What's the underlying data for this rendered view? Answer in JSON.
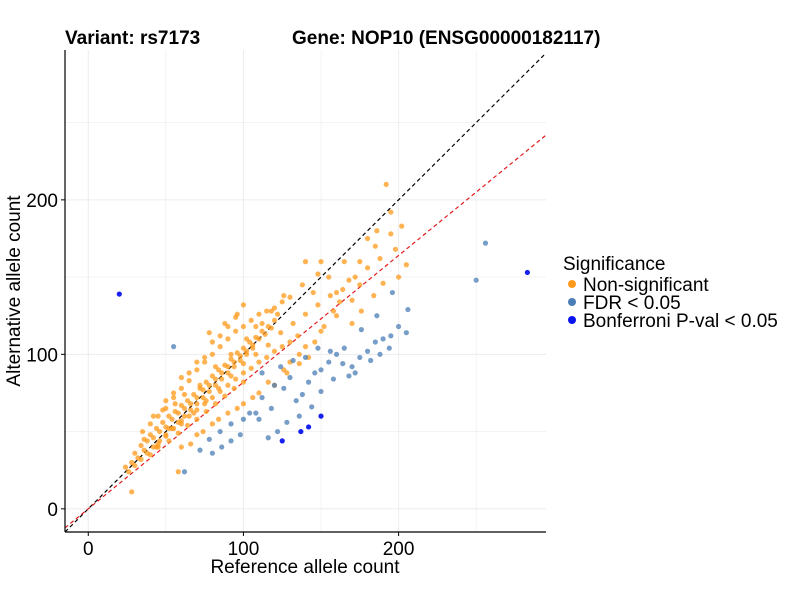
{
  "chart_data": {
    "type": "scatter",
    "title_left": "Variant: rs7173",
    "title_right": "Gene: NOP10 (ENSG00000182117)",
    "xlabel": "Reference allele count",
    "ylabel": "Alternative allele count",
    "xlim": [
      -15,
      295
    ],
    "ylim": [
      -15,
      297
    ],
    "xticks": [
      0,
      100,
      200
    ],
    "yticks": [
      0,
      100,
      200
    ],
    "grid": true,
    "reference_lines": [
      {
        "name": "identity",
        "slope": 1,
        "intercept": 0,
        "color": "#000000",
        "style": "dashed"
      },
      {
        "name": "fit",
        "slope": 0.82,
        "intercept": 0,
        "color": "#e41a1c",
        "style": "dashed"
      }
    ],
    "legend": {
      "title": "Significance",
      "position": "right",
      "entries": [
        {
          "label": "Non-significant",
          "color": "#ff9a1a"
        },
        {
          "label": "FDR < 0.05",
          "color": "#4a7eb5"
        },
        {
          "label": "Bonferroni P-val < 0.05",
          "color": "#0a14f0"
        }
      ]
    },
    "series": [
      {
        "name": "Non-significant",
        "color": "#ff9a1a",
        "points": [
          [
            28,
            11
          ],
          [
            26,
            24
          ],
          [
            24,
            27
          ],
          [
            28,
            30
          ],
          [
            30,
            36
          ],
          [
            32,
            33
          ],
          [
            34,
            41
          ],
          [
            36,
            38
          ],
          [
            38,
            44
          ],
          [
            40,
            48
          ],
          [
            42,
            46
          ],
          [
            44,
            52
          ],
          [
            46,
            50
          ],
          [
            48,
            56
          ],
          [
            50,
            53
          ],
          [
            52,
            60
          ],
          [
            54,
            58
          ],
          [
            56,
            63
          ],
          [
            58,
            62
          ],
          [
            60,
            67
          ],
          [
            62,
            65
          ],
          [
            64,
            70
          ],
          [
            66,
            68
          ],
          [
            68,
            74
          ],
          [
            70,
            72
          ],
          [
            72,
            78
          ],
          [
            74,
            77
          ],
          [
            76,
            82
          ],
          [
            78,
            80
          ],
          [
            80,
            86
          ],
          [
            82,
            84
          ],
          [
            84,
            90
          ],
          [
            86,
            88
          ],
          [
            88,
            93
          ],
          [
            90,
            92
          ],
          [
            92,
            97
          ],
          [
            94,
            95
          ],
          [
            96,
            101
          ],
          [
            98,
            99
          ],
          [
            100,
            104
          ],
          [
            102,
            102
          ],
          [
            104,
            108
          ],
          [
            106,
            106
          ],
          [
            108,
            111
          ],
          [
            110,
            110
          ],
          [
            112,
            115
          ],
          [
            114,
            113
          ],
          [
            116,
            118
          ],
          [
            118,
            117
          ],
          [
            120,
            122
          ],
          [
            35,
            50
          ],
          [
            40,
            55
          ],
          [
            45,
            60
          ],
          [
            50,
            65
          ],
          [
            55,
            72
          ],
          [
            60,
            78
          ],
          [
            65,
            83
          ],
          [
            70,
            90
          ],
          [
            75,
            95
          ],
          [
            80,
            100
          ],
          [
            85,
            105
          ],
          [
            90,
            110
          ],
          [
            95,
            115
          ],
          [
            100,
            118
          ],
          [
            105,
            122
          ],
          [
            110,
            126
          ],
          [
            115,
            128
          ],
          [
            120,
            130
          ],
          [
            125,
            134
          ],
          [
            130,
            137
          ],
          [
            40,
            35
          ],
          [
            45,
            42
          ],
          [
            50,
            47
          ],
          [
            55,
            52
          ],
          [
            60,
            57
          ],
          [
            65,
            60
          ],
          [
            70,
            64
          ],
          [
            75,
            68
          ],
          [
            80,
            72
          ],
          [
            85,
            76
          ],
          [
            90,
            80
          ],
          [
            95,
            84
          ],
          [
            100,
            88
          ],
          [
            105,
            91
          ],
          [
            110,
            95
          ],
          [
            115,
            98
          ],
          [
            120,
            102
          ],
          [
            125,
            105
          ],
          [
            130,
            108
          ],
          [
            135,
            112
          ],
          [
            45,
            40
          ],
          [
            52,
            44
          ],
          [
            58,
            49
          ],
          [
            64,
            54
          ],
          [
            70,
            58
          ],
          [
            76,
            63
          ],
          [
            82,
            68
          ],
          [
            88,
            73
          ],
          [
            94,
            78
          ],
          [
            100,
            82
          ],
          [
            36,
            45
          ],
          [
            44,
            40
          ],
          [
            52,
            52
          ],
          [
            60,
            55
          ],
          [
            68,
            62
          ],
          [
            76,
            70
          ],
          [
            84,
            78
          ],
          [
            92,
            86
          ],
          [
            100,
            94
          ],
          [
            108,
            100
          ],
          [
            116,
            106
          ],
          [
            124,
            114
          ],
          [
            132,
            120
          ],
          [
            140,
            126
          ],
          [
            148,
            132
          ],
          [
            156,
            138
          ],
          [
            164,
            142
          ],
          [
            172,
            150
          ],
          [
            180,
            156
          ],
          [
            188,
            162
          ],
          [
            130,
            95
          ],
          [
            140,
            105
          ],
          [
            150,
            115
          ],
          [
            160,
            125
          ],
          [
            170,
            135
          ],
          [
            145,
            140
          ],
          [
            155,
            150
          ],
          [
            165,
            160
          ],
          [
            175,
            145
          ],
          [
            185,
            170
          ],
          [
            192,
            210
          ],
          [
            186,
            180
          ],
          [
            195,
            178
          ],
          [
            202,
            183
          ],
          [
            198,
            168
          ],
          [
            205,
            158
          ],
          [
            180,
            175
          ],
          [
            175,
            160
          ],
          [
            168,
            148
          ],
          [
            160,
            140
          ],
          [
            50,
            70
          ],
          [
            55,
            75
          ],
          [
            60,
            85
          ],
          [
            65,
            88
          ],
          [
            70,
            95
          ],
          [
            75,
            98
          ],
          [
            80,
            108
          ],
          [
            85,
            112
          ],
          [
            90,
            118
          ],
          [
            95,
            124
          ],
          [
            100,
            132
          ],
          [
            78,
            114
          ],
          [
            88,
            120
          ],
          [
            96,
            126
          ],
          [
            108,
            118
          ],
          [
            118,
            128
          ],
          [
            126,
            138
          ],
          [
            138,
            145
          ],
          [
            148,
            152
          ],
          [
            150,
            160
          ],
          [
            30,
            28
          ],
          [
            34,
            32
          ],
          [
            38,
            36
          ],
          [
            42,
            40
          ],
          [
            46,
            44
          ],
          [
            50,
            48
          ],
          [
            54,
            52
          ],
          [
            58,
            56
          ],
          [
            62,
            60
          ],
          [
            66,
            64
          ],
          [
            70,
            68
          ],
          [
            74,
            72
          ],
          [
            78,
            76
          ],
          [
            82,
            80
          ],
          [
            86,
            84
          ],
          [
            90,
            88
          ],
          [
            94,
            92
          ],
          [
            98,
            96
          ],
          [
            102,
            100
          ],
          [
            106,
            104
          ],
          [
            60,
            40
          ],
          [
            70,
            48
          ],
          [
            80,
            55
          ],
          [
            90,
            62
          ],
          [
            100,
            68
          ],
          [
            110,
            75
          ],
          [
            120,
            80
          ],
          [
            128,
            88
          ],
          [
            136,
            94
          ],
          [
            142,
            98
          ],
          [
            42,
            60
          ],
          [
            48,
            64
          ],
          [
            56,
            68
          ],
          [
            62,
            74
          ],
          [
            72,
            80
          ],
          [
            82,
            92
          ],
          [
            92,
            100
          ],
          [
            102,
            110
          ],
          [
            112,
            120
          ],
          [
            122,
            126
          ],
          [
            58,
            24
          ],
          [
            66,
            42
          ],
          [
            74,
            50
          ],
          [
            84,
            58
          ],
          [
            96,
            65
          ],
          [
            106,
            72
          ],
          [
            116,
            82
          ],
          [
            126,
            90
          ],
          [
            136,
            100
          ],
          [
            146,
            108
          ],
          [
            152,
            118
          ],
          [
            158,
            128
          ],
          [
            162,
            134
          ],
          [
            170,
            120
          ],
          [
            176,
            128
          ],
          [
            184,
            138
          ],
          [
            190,
            146
          ],
          [
            195,
            192
          ],
          [
            200,
            150
          ],
          [
            140,
            160
          ]
        ]
      },
      {
        "name": "FDR < 0.05",
        "color": "#4a7eb5",
        "points": [
          [
            55,
            105
          ],
          [
            62,
            24
          ],
          [
            72,
            38
          ],
          [
            78,
            45
          ],
          [
            85,
            50
          ],
          [
            92,
            55
          ],
          [
            100,
            58
          ],
          [
            108,
            62
          ],
          [
            112,
            72
          ],
          [
            118,
            65
          ],
          [
            120,
            80
          ],
          [
            126,
            78
          ],
          [
            130,
            85
          ],
          [
            134,
            70
          ],
          [
            138,
            74
          ],
          [
            142,
            82
          ],
          [
            146,
            88
          ],
          [
            150,
            90
          ],
          [
            155,
            95
          ],
          [
            160,
            100
          ],
          [
            165,
            104
          ],
          [
            170,
            92
          ],
          [
            175,
            98
          ],
          [
            180,
            102
          ],
          [
            185,
            108
          ],
          [
            190,
            110
          ],
          [
            195,
            112
          ],
          [
            200,
            118
          ],
          [
            205,
            114
          ],
          [
            206,
            129
          ],
          [
            250,
            148
          ],
          [
            256,
            172
          ],
          [
            196,
            140
          ],
          [
            186,
            125
          ],
          [
            176,
            116
          ],
          [
            168,
            86
          ],
          [
            158,
            84
          ],
          [
            150,
            76
          ],
          [
            144,
            66
          ],
          [
            136,
            60
          ],
          [
            128,
            56
          ],
          [
            122,
            50
          ],
          [
            116,
            46
          ],
          [
            110,
            58
          ],
          [
            104,
            62
          ],
          [
            98,
            48
          ],
          [
            92,
            44
          ],
          [
            86,
            40
          ],
          [
            80,
            36
          ],
          [
            112,
            88
          ],
          [
            124,
            92
          ],
          [
            132,
            96
          ],
          [
            140,
            98
          ],
          [
            148,
            104
          ],
          [
            156,
            102
          ],
          [
            164,
            94
          ],
          [
            172,
            88
          ],
          [
            182,
            96
          ],
          [
            188,
            100
          ],
          [
            194,
            104
          ]
        ]
      },
      {
        "name": "Bonferroni P-val < 0.05",
        "color": "#0a14f0",
        "points": [
          [
            20,
            139
          ],
          [
            283,
            153
          ],
          [
            125,
            44
          ],
          [
            137,
            50
          ],
          [
            142,
            53
          ],
          [
            150,
            60
          ]
        ]
      }
    ]
  }
}
